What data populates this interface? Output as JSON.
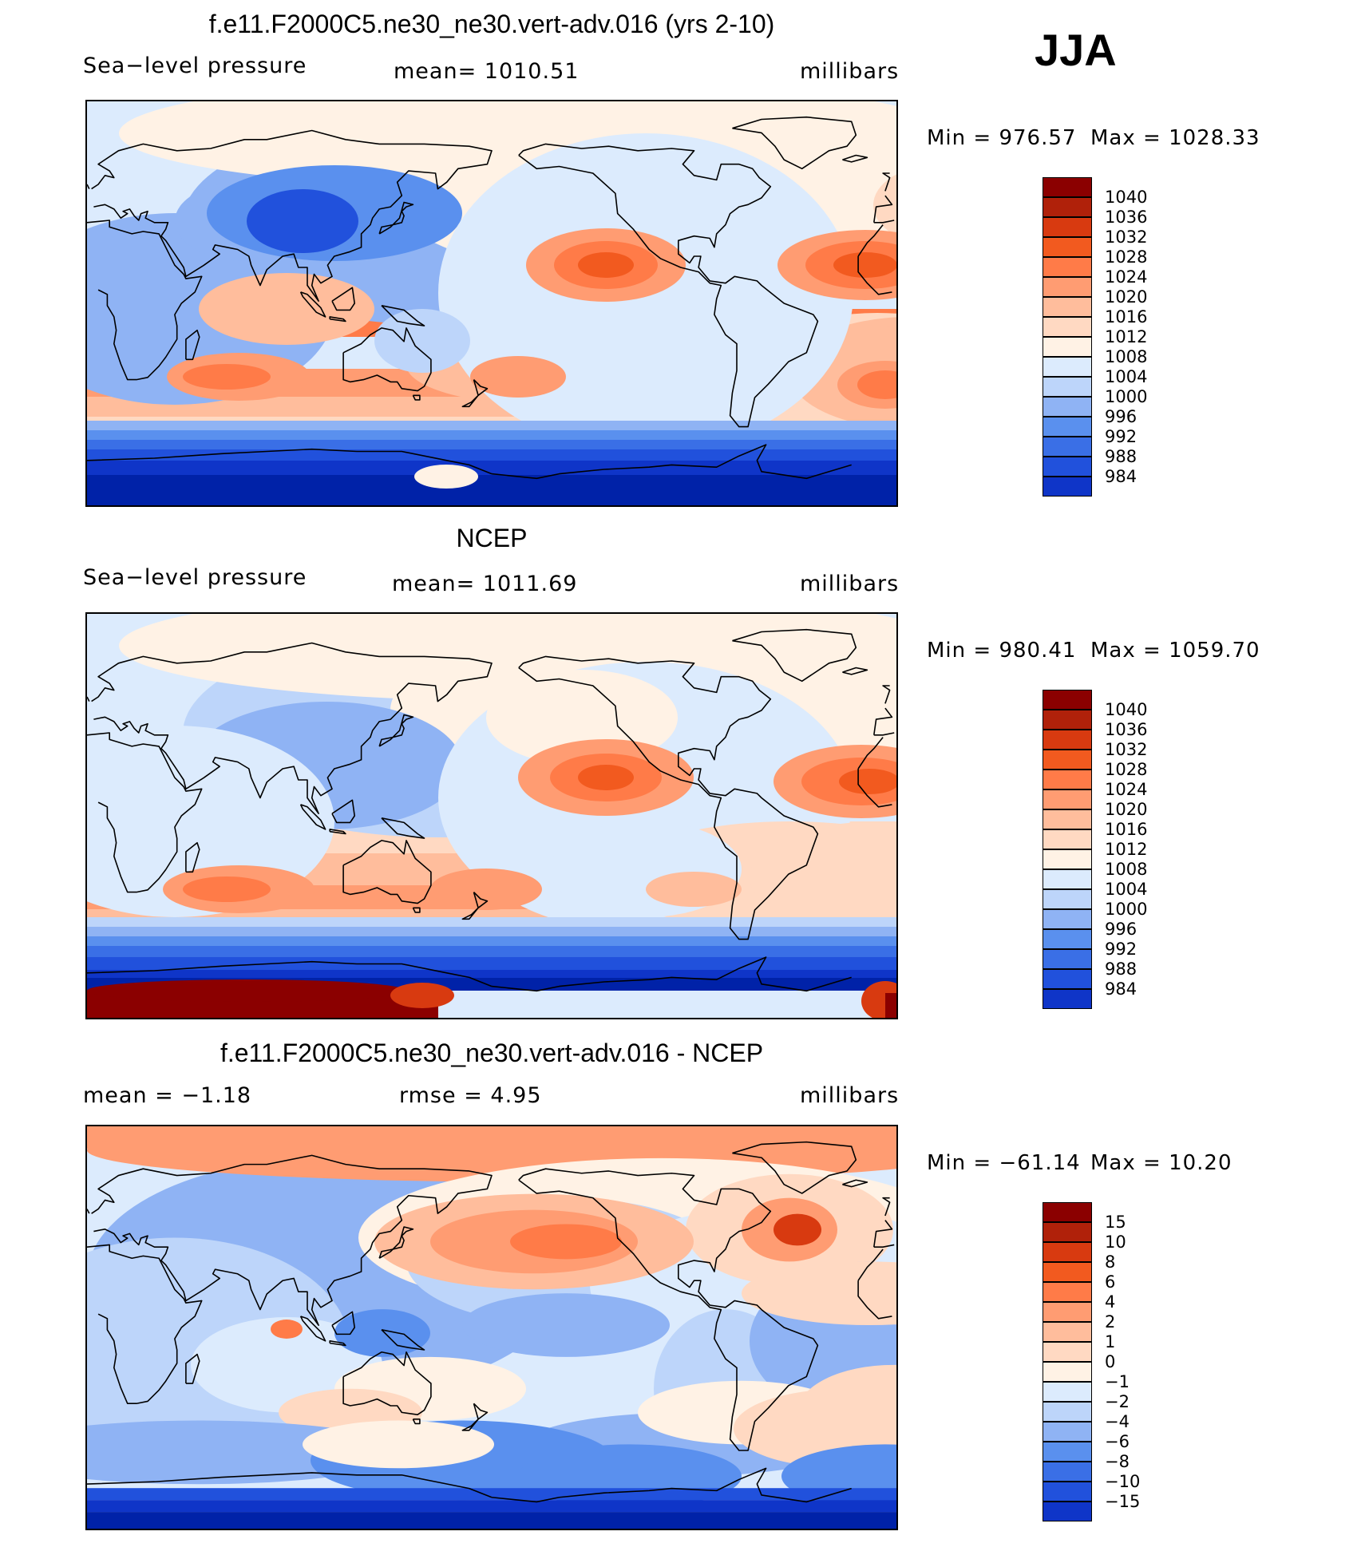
{
  "season": "JJA",
  "colors": {
    "ramp": [
      "#000b7d",
      "#0022a8",
      "#0f35c8",
      "#2151dc",
      "#3a6fe6",
      "#5a90ee",
      "#8fb3f4",
      "#bdd5fa",
      "#dcebfd",
      "#fff2e5",
      "#ffd9c2",
      "#ffbd9c",
      "#ff9c72",
      "#ff7b48",
      "#f25a1f",
      "#d83a10",
      "#b0210a",
      "#8b0000"
    ],
    "coast": "#000000"
  },
  "panels": [
    {
      "title": "f.e11.F2000C5.ne30_ne30.vert-adv.016 (yrs 2-10)",
      "left_label": "Sea−level pressure",
      "center_label": "mean=  1010.51",
      "right_label": "millibars",
      "min_label": "Min  =  976.57",
      "max_label": "Max  =  1028.33",
      "field": "model",
      "colorbar": [
        "1040",
        "1036",
        "1032",
        "1028",
        "1024",
        "1020",
        "1016",
        "1012",
        "1008",
        "1004",
        "1000",
        "996",
        "992",
        "988",
        "984"
      ]
    },
    {
      "title": "NCEP",
      "left_label": "Sea−level pressure",
      "center_label": "mean=  1011.69",
      "right_label": "millibars",
      "min_label": "Min  =  980.41",
      "max_label": "Max  =  1059.70",
      "field": "obs",
      "colorbar": [
        "1040",
        "1036",
        "1032",
        "1028",
        "1024",
        "1020",
        "1016",
        "1012",
        "1008",
        "1004",
        "1000",
        "996",
        "992",
        "988",
        "984"
      ]
    },
    {
      "title": "f.e11.F2000C5.ne30_ne30.vert-adv.016 - NCEP",
      "left_label": "mean  =    −1.18",
      "center_label": "rmse  =      4.95",
      "right_label": "millibars",
      "min_label": "Min  =  −61.14",
      "max_label": "Max  =     10.20",
      "field": "diff",
      "colorbar": [
        "15",
        "10",
        "8",
        "6",
        "4",
        "2",
        "1",
        "0",
        "−1",
        "−2",
        "−4",
        "−6",
        "−8",
        "−10",
        "−15"
      ]
    }
  ]
}
